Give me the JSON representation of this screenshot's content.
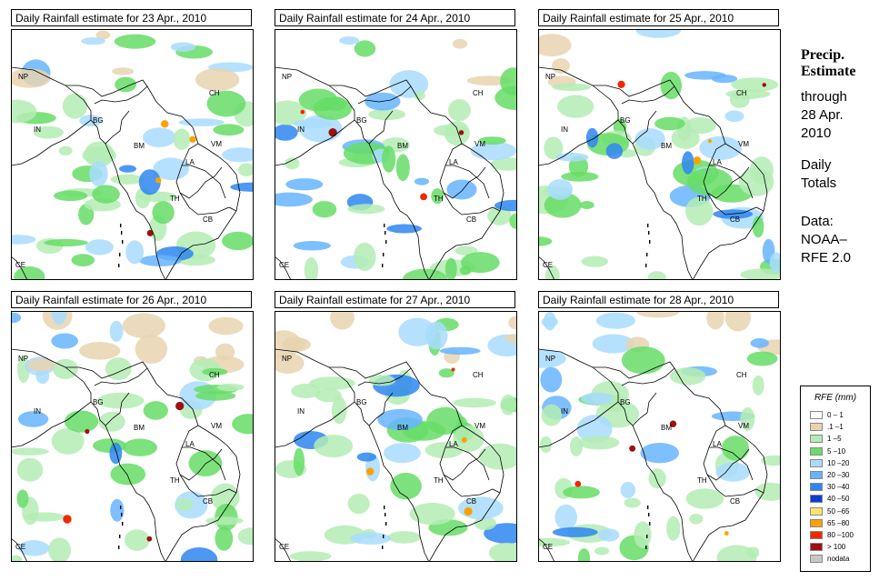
{
  "panels": [
    {
      "title": "Daily Rainfall estimate for  23 Apr., 2010",
      "seed": 23
    },
    {
      "title": "Daily Rainfall estimate for  24 Apr., 2010",
      "seed": 24
    },
    {
      "title": "Daily Rainfall estimate for  25 Apr., 2010",
      "seed": 25
    },
    {
      "title": "Daily Rainfall estimate for  26 Apr., 2010",
      "seed": 26
    },
    {
      "title": "Daily Rainfall estimate for  27 Apr., 2010",
      "seed": 27
    },
    {
      "title": "Daily Rainfall estimate for  28 Apr., 2010",
      "seed": 28
    }
  ],
  "country_labels": [
    "NP",
    "CH",
    "IN",
    "BG",
    "BM",
    "VM",
    "LA",
    "TH",
    "CB",
    "CE"
  ],
  "side": {
    "title_line1": "Precip.",
    "title_line2": "Estimate",
    "through": "through",
    "date_line1": "28 Apr.",
    "date_line2": "2010",
    "daily1": "Daily",
    "daily2": "Totals",
    "data1": "Data:",
    "data2": "NOAA–",
    "data3": "RFE 2.0"
  },
  "legend": {
    "title": "RFE (mm)",
    "items": [
      {
        "label": "0 – 1",
        "color": "#ffffff"
      },
      {
        "label": ".1 –1",
        "color": "#e8d3b0"
      },
      {
        "label": "1 –5",
        "color": "#b4ecb4"
      },
      {
        "label": "5 –10",
        "color": "#66dd66"
      },
      {
        "label": "10 –20",
        "color": "#a8dcff"
      },
      {
        "label": "20 –30",
        "color": "#66b4ff"
      },
      {
        "label": "30 –40",
        "color": "#2e86f0"
      },
      {
        "label": "40 –50",
        "color": "#0a40d0"
      },
      {
        "label": "50 –65",
        "color": "#ffe46a"
      },
      {
        "label": "65 –80",
        "color": "#ffa000"
      },
      {
        "label": "80 –100",
        "color": "#f02800"
      },
      {
        "label": "> 100",
        "color": "#a01010"
      },
      {
        "label": "nodata",
        "color": "#c8c8c8"
      }
    ]
  }
}
